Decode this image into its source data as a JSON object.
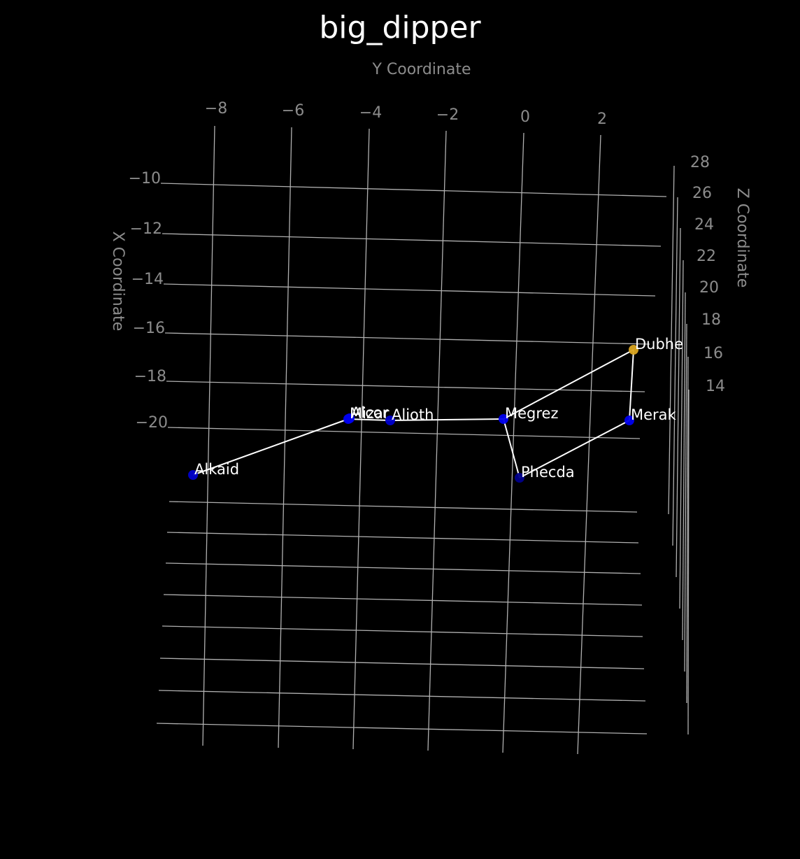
{
  "chart_data": {
    "type": "scatter",
    "projection": "3d",
    "title": "big_dipper",
    "xlabel": "X Coordinate",
    "ylabel": "Y Coordinate",
    "zlabel": "Z Coordinate",
    "x_ticks": [
      "−10",
      "−12",
      "−14",
      "−16",
      "−18",
      "−20"
    ],
    "y_ticks": [
      "−8",
      "−6",
      "−4",
      "−2",
      "0",
      "2"
    ],
    "z_ticks": [
      "28",
      "26",
      "24",
      "22",
      "20",
      "18",
      "16",
      "14"
    ],
    "grid": true,
    "background": "#000000",
    "stars": [
      {
        "name": "Alkaid",
        "color": "#0000cc"
      },
      {
        "name": "Mizar",
        "color": "#0000ee"
      },
      {
        "name": "Alcor",
        "color": "#0000ee"
      },
      {
        "name": "Alioth",
        "color": "#0000cc"
      },
      {
        "name": "Megrez",
        "color": "#0000ee"
      },
      {
        "name": "Phecda",
        "color": "#00008b"
      },
      {
        "name": "Merak",
        "color": "#0000ee"
      },
      {
        "name": "Dubhe",
        "color": "#daa520"
      }
    ],
    "connections": [
      [
        "Alkaid",
        "Mizar"
      ],
      [
        "Mizar",
        "Alioth"
      ],
      [
        "Alioth",
        "Megrez"
      ],
      [
        "Megrez",
        "Phecda"
      ],
      [
        "Phecda",
        "Merak"
      ],
      [
        "Merak",
        "Dubhe"
      ],
      [
        "Dubhe",
        "Megrez"
      ]
    ]
  }
}
